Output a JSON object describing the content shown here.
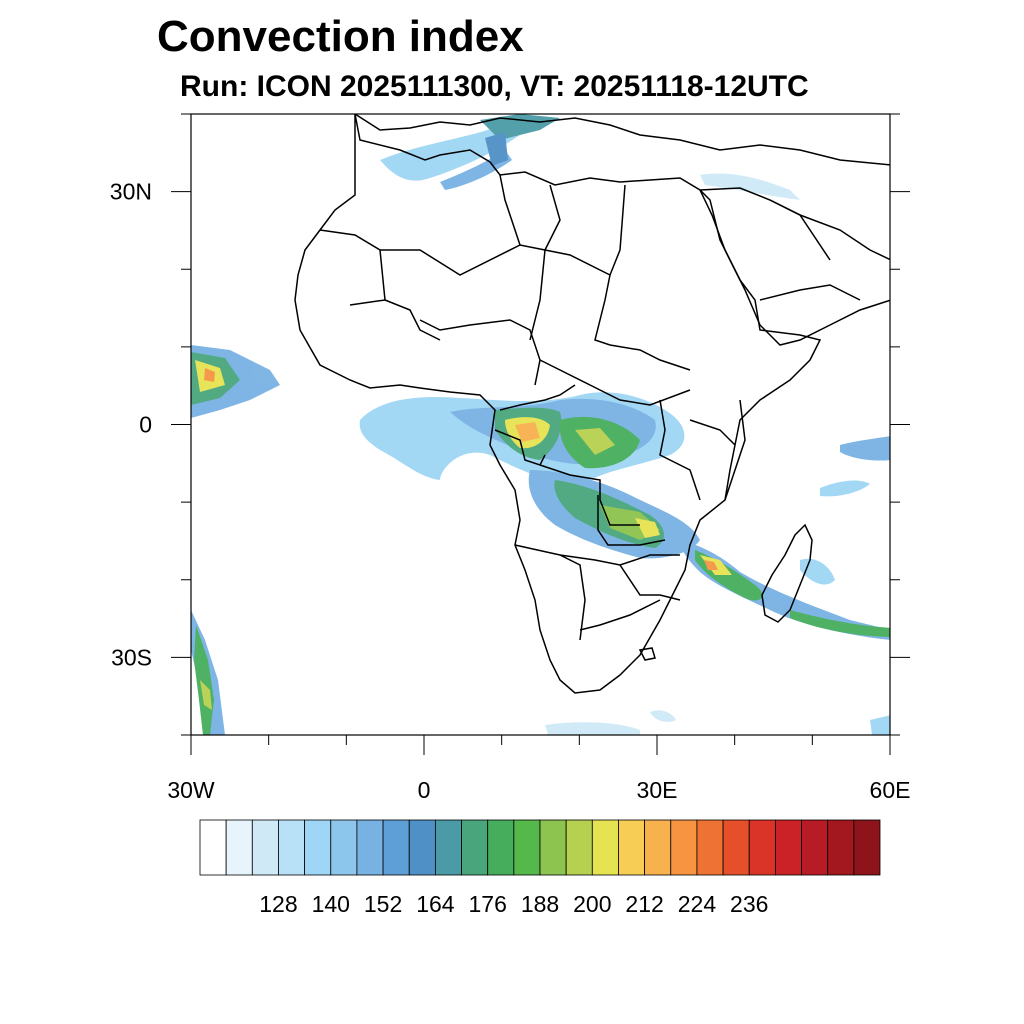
{
  "title": "Convection index",
  "subtitle": "Run: ICON 2025111300,  VT: 20251118-12UTC",
  "map": {
    "region": "Africa",
    "lon_range": [
      -30,
      60
    ],
    "lat_range": [
      -40,
      40
    ],
    "x_ticks": [
      {
        "value": -30,
        "label": "30W"
      },
      {
        "value": 0,
        "label": "0"
      },
      {
        "value": 30,
        "label": "30E"
      },
      {
        "value": 60,
        "label": "60E"
      }
    ],
    "y_ticks": [
      {
        "value": 30,
        "label": "30N"
      },
      {
        "value": 0,
        "label": "0"
      },
      {
        "value": -30,
        "label": "30S"
      }
    ]
  },
  "colorbar": {
    "labels": [
      "128",
      "140",
      "152",
      "164",
      "176",
      "188",
      "200",
      "212",
      "224",
      "236"
    ],
    "colors": [
      "#ffffff",
      "#e8f4fb",
      "#cfe9f7",
      "#b8e0f6",
      "#9fd6f5",
      "#8cc6ec",
      "#78b2e3",
      "#5f9fd8",
      "#4f90c7",
      "#4a9ba6",
      "#49a67c",
      "#45ad5c",
      "#55b84b",
      "#8cc44f",
      "#b6d04f",
      "#e6e352",
      "#f7cd55",
      "#f7b14d",
      "#f69441",
      "#ee7233",
      "#e5502a",
      "#da3327",
      "#cb2227",
      "#b71b25",
      "#a3181f",
      "#8d141a"
    ]
  }
}
